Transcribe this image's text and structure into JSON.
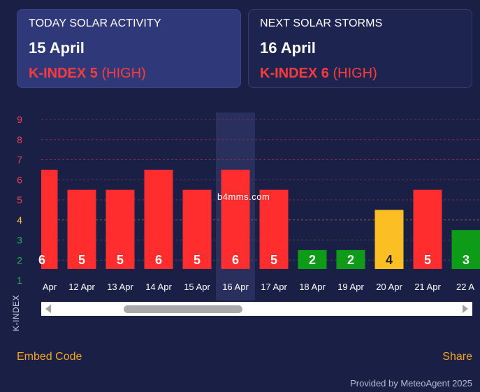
{
  "today": {
    "title": "TODAY SOLAR ACTIVITY",
    "date": "15 April",
    "kindex_label": "K-INDEX 5",
    "level": "(HIGH)"
  },
  "next": {
    "title": "NEXT SOLAR STORMS",
    "date": "16 April",
    "kindex_label": "K-INDEX 6",
    "level": "(HIGH)"
  },
  "chart_data": {
    "type": "bar",
    "title": "",
    "xlabel": "",
    "ylabel": "K-INDEX",
    "ylim": [
      1,
      9
    ],
    "yticks": [
      1,
      2,
      3,
      4,
      5,
      6,
      7,
      8,
      9
    ],
    "categories": [
      "Apr",
      "12 Apr",
      "13 Apr",
      "14 Apr",
      "15 Apr",
      "16 Apr",
      "17 Apr",
      "18 Apr",
      "19 Apr",
      "20 Apr",
      "21 Apr",
      "22 A"
    ],
    "values": [
      6,
      5,
      5,
      6,
      5,
      6,
      5,
      2,
      2,
      4,
      5,
      3
    ],
    "highlighted_category": "16 Apr",
    "grid": true,
    "colors": {
      "high": "#ff2d2d",
      "moderate": "#fbbf24",
      "low": "#0d9b18",
      "tick_high": "#f2444e",
      "tick_moderate": "#f5c842",
      "tick_low": "#22b34a"
    }
  },
  "scrollbar": {
    "visible": true
  },
  "footer": {
    "embed_label": "Embed Code",
    "share_label": "Share",
    "credit": "Provided by MeteoAgent 2025"
  },
  "watermark": "b4mms.com"
}
